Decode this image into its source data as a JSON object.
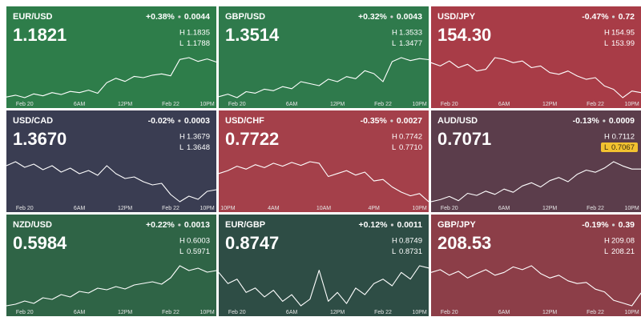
{
  "chart_data": [
    {
      "type": "line",
      "title": "EUR/USD",
      "price": "1.1821",
      "change_pct": "+0.38%",
      "change": "0.0044",
      "high_label": "H",
      "high": "1.1835",
      "low_label": "L",
      "low": "1.1788",
      "color": "#2e7d4a",
      "line_color": "#ffffff",
      "low_highlight": false,
      "x": [
        0,
        1,
        2,
        3,
        4,
        5,
        6,
        7,
        8,
        9,
        10,
        11,
        12,
        13,
        14,
        15,
        16,
        17,
        18,
        19,
        20,
        21,
        22,
        23
      ],
      "values": [
        1.1765,
        1.1768,
        1.1764,
        1.177,
        1.1767,
        1.1772,
        1.1769,
        1.1774,
        1.1772,
        1.1776,
        1.1771,
        1.1788,
        1.1795,
        1.179,
        1.1798,
        1.1796,
        1.18,
        1.1802,
        1.1799,
        1.1825,
        1.1828,
        1.1822,
        1.1826,
        1.1821
      ],
      "xlim": [
        0,
        23
      ],
      "xticks": [
        {
          "value": 2,
          "label": "Feb 20"
        },
        {
          "value": 8,
          "label": "6AM"
        },
        {
          "value": 13,
          "label": "12PM"
        },
        {
          "value": 18,
          "label": "Feb 22"
        },
        {
          "value": 22,
          "label": "10PM"
        }
      ]
    },
    {
      "type": "line",
      "title": "GBP/USD",
      "price": "1.3514",
      "change_pct": "+0.32%",
      "change": "0.0043",
      "high_label": "H",
      "high": "1.3533",
      "low_label": "L",
      "low": "1.3477",
      "color": "#2f7a4c",
      "line_color": "#ffffff",
      "low_highlight": false,
      "x": [
        0,
        1,
        2,
        3,
        4,
        5,
        6,
        7,
        8,
        9,
        10,
        11,
        12,
        13,
        14,
        15,
        16,
        17,
        18,
        19,
        20,
        21,
        22,
        23
      ],
      "values": [
        1.344,
        1.3445,
        1.3438,
        1.345,
        1.3447,
        1.3455,
        1.3452,
        1.346,
        1.3456,
        1.347,
        1.3466,
        1.3462,
        1.3475,
        1.347,
        1.348,
        1.3476,
        1.3492,
        1.3486,
        1.347,
        1.351,
        1.3518,
        1.3512,
        1.3516,
        1.3514
      ],
      "xlim": [
        0,
        23
      ],
      "xticks": [
        {
          "value": 2,
          "label": "Feb 20"
        },
        {
          "value": 8,
          "label": "6AM"
        },
        {
          "value": 13,
          "label": "12PM"
        },
        {
          "value": 18,
          "label": "Feb 22"
        },
        {
          "value": 22,
          "label": "10PM"
        }
      ]
    },
    {
      "type": "line",
      "title": "USD/JPY",
      "price": "154.30",
      "change_pct": "-0.47%",
      "change": "0.72",
      "high_label": "H",
      "high": "154.95",
      "low_label": "L",
      "low": "153.99",
      "color": "#a83c47",
      "line_color": "#ffffff",
      "low_highlight": false,
      "x": [
        0,
        1,
        2,
        3,
        4,
        5,
        6,
        7,
        8,
        9,
        10,
        11,
        12,
        13,
        14,
        15,
        16,
        17,
        18,
        19,
        20,
        21,
        22,
        23
      ],
      "values": [
        155.2,
        155.1,
        155.25,
        155.05,
        155.15,
        154.95,
        155.0,
        155.35,
        155.3,
        155.2,
        155.25,
        155.05,
        155.1,
        154.9,
        154.85,
        154.95,
        154.8,
        154.7,
        154.75,
        154.5,
        154.4,
        154.15,
        154.35,
        154.3
      ],
      "xlim": [
        0,
        23
      ],
      "xticks": [
        {
          "value": 2,
          "label": "Feb 20"
        },
        {
          "value": 8,
          "label": "6AM"
        },
        {
          "value": 13,
          "label": "12PM"
        },
        {
          "value": 18,
          "label": "Feb 22"
        },
        {
          "value": 22,
          "label": "10PM"
        }
      ]
    },
    {
      "type": "line",
      "title": "USD/CAD",
      "price": "1.3670",
      "change_pct": "-0.02%",
      "change": "0.0003",
      "high_label": "H",
      "high": "1.3679",
      "low_label": "L",
      "low": "1.3648",
      "color": "#3a3d52",
      "line_color": "#ffffff",
      "low_highlight": false,
      "x": [
        0,
        1,
        2,
        3,
        4,
        5,
        6,
        7,
        8,
        9,
        10,
        11,
        12,
        13,
        14,
        15,
        16,
        17,
        18,
        19,
        20,
        21,
        22,
        23
      ],
      "values": [
        1.37,
        1.3705,
        1.3698,
        1.3702,
        1.3695,
        1.37,
        1.3692,
        1.3697,
        1.369,
        1.3694,
        1.3688,
        1.37,
        1.369,
        1.3684,
        1.3686,
        1.368,
        1.3676,
        1.3678,
        1.3664,
        1.3655,
        1.3662,
        1.3658,
        1.3668,
        1.367
      ],
      "xlim": [
        0,
        23
      ],
      "xticks": [
        {
          "value": 2,
          "label": "Feb 20"
        },
        {
          "value": 8,
          "label": "6AM"
        },
        {
          "value": 13,
          "label": "12PM"
        },
        {
          "value": 18,
          "label": "Feb 22"
        },
        {
          "value": 22,
          "label": "10PM"
        }
      ]
    },
    {
      "type": "line",
      "title": "USD/CHF",
      "price": "0.7722",
      "change_pct": "-0.35%",
      "change": "0.0027",
      "high_label": "H",
      "high": "0.7742",
      "low_label": "L",
      "low": "0.7710",
      "color": "#a4404a",
      "line_color": "#ffffff",
      "low_highlight": false,
      "x": [
        0,
        1,
        2,
        3,
        4,
        5,
        6,
        7,
        8,
        9,
        10,
        11,
        12,
        13,
        14,
        15,
        16,
        17,
        18,
        19,
        20,
        21,
        22,
        23
      ],
      "values": [
        0.776,
        0.7764,
        0.777,
        0.7766,
        0.7772,
        0.7768,
        0.7774,
        0.777,
        0.7775,
        0.7771,
        0.7776,
        0.7774,
        0.7756,
        0.776,
        0.7764,
        0.7758,
        0.7762,
        0.775,
        0.7752,
        0.7742,
        0.7735,
        0.773,
        0.7733,
        0.7722
      ],
      "xlim": [
        0,
        23
      ],
      "xticks": [
        {
          "value": 1,
          "label": "10PM"
        },
        {
          "value": 6,
          "label": "4AM"
        },
        {
          "value": 11.5,
          "label": "10AM"
        },
        {
          "value": 17,
          "label": "4PM"
        },
        {
          "value": 22,
          "label": "10PM"
        }
      ]
    },
    {
      "type": "line",
      "title": "AUD/USD",
      "price": "0.7071",
      "change_pct": "-0.13%",
      "change": "0.0009",
      "high_label": "H",
      "high": "0.7112",
      "low_label": "L",
      "low": "0.7067",
      "color": "#5b3d4b",
      "line_color": "#ffffff",
      "low_highlight": true,
      "x": [
        0,
        1,
        2,
        3,
        4,
        5,
        6,
        7,
        8,
        9,
        10,
        11,
        12,
        13,
        14,
        15,
        16,
        17,
        18,
        19,
        20,
        21,
        22,
        23
      ],
      "values": [
        0.704,
        0.7042,
        0.7045,
        0.7041,
        0.7048,
        0.7046,
        0.705,
        0.7047,
        0.7052,
        0.7049,
        0.7055,
        0.7058,
        0.7054,
        0.706,
        0.7063,
        0.7059,
        0.7066,
        0.707,
        0.7068,
        0.7072,
        0.7078,
        0.7074,
        0.7071,
        0.7071
      ],
      "xlim": [
        0,
        23
      ],
      "xticks": [
        {
          "value": 2,
          "label": "Feb 20"
        },
        {
          "value": 8,
          "label": "6AM"
        },
        {
          "value": 13,
          "label": "12PM"
        },
        {
          "value": 18,
          "label": "Feb 22"
        },
        {
          "value": 22,
          "label": "10PM"
        }
      ]
    },
    {
      "type": "line",
      "title": "NZD/USD",
      "price": "0.5984",
      "change_pct": "+0.22%",
      "change": "0.0013",
      "high_label": "H",
      "high": "0.6003",
      "low_label": "L",
      "low": "0.5971",
      "color": "#2f6446",
      "line_color": "#ffffff",
      "low_highlight": false,
      "x": [
        0,
        1,
        2,
        3,
        4,
        5,
        6,
        7,
        8,
        9,
        10,
        11,
        12,
        13,
        14,
        15,
        16,
        17,
        18,
        19,
        20,
        21,
        22,
        23
      ],
      "values": [
        0.594,
        0.5942,
        0.5946,
        0.5943,
        0.595,
        0.5948,
        0.5954,
        0.5951,
        0.5958,
        0.5956,
        0.5962,
        0.596,
        0.5964,
        0.5961,
        0.5966,
        0.5968,
        0.597,
        0.5967,
        0.5975,
        0.599,
        0.5984,
        0.5987,
        0.5982,
        0.5984
      ],
      "xlim": [
        0,
        23
      ],
      "xticks": [
        {
          "value": 2,
          "label": "Feb 20"
        },
        {
          "value": 8,
          "label": "6AM"
        },
        {
          "value": 13,
          "label": "12PM"
        },
        {
          "value": 18,
          "label": "Feb 22"
        },
        {
          "value": 22,
          "label": "10PM"
        }
      ]
    },
    {
      "type": "line",
      "title": "EUR/GBP",
      "price": "0.8747",
      "change_pct": "+0.12%",
      "change": "0.0011",
      "high_label": "H",
      "high": "0.8749",
      "low_label": "L",
      "low": "0.8731",
      "color": "#2e4d45",
      "line_color": "#ffffff",
      "low_highlight": false,
      "x": [
        0,
        1,
        2,
        3,
        4,
        5,
        6,
        7,
        8,
        9,
        10,
        11,
        12,
        13,
        14,
        15,
        16,
        17,
        18,
        19,
        20,
        21,
        22,
        23
      ],
      "values": [
        0.8745,
        0.874,
        0.8742,
        0.8736,
        0.8738,
        0.8734,
        0.8737,
        0.8732,
        0.8735,
        0.873,
        0.8733,
        0.8746,
        0.8732,
        0.8736,
        0.8731,
        0.8738,
        0.8735,
        0.874,
        0.8742,
        0.8739,
        0.8745,
        0.8742,
        0.8748,
        0.8747
      ],
      "xlim": [
        0,
        23
      ],
      "xticks": [
        {
          "value": 2,
          "label": "Feb 20"
        },
        {
          "value": 8,
          "label": "6AM"
        },
        {
          "value": 13,
          "label": "12PM"
        },
        {
          "value": 18,
          "label": "Feb 22"
        },
        {
          "value": 22,
          "label": "10PM"
        }
      ]
    },
    {
      "type": "line",
      "title": "GBP/JPY",
      "price": "208.53",
      "change_pct": "-0.19%",
      "change": "0.39",
      "high_label": "H",
      "high": "209.08",
      "low_label": "L",
      "low": "208.21",
      "color": "#8c3e48",
      "line_color": "#ffffff",
      "low_highlight": false,
      "x": [
        0,
        1,
        2,
        3,
        4,
        5,
        6,
        7,
        8,
        9,
        10,
        11,
        12,
        13,
        14,
        15,
        16,
        17,
        18,
        19,
        20,
        21,
        22,
        23
      ],
      "values": [
        208.9,
        208.95,
        208.85,
        208.92,
        208.8,
        208.88,
        208.95,
        208.85,
        208.9,
        209.0,
        208.95,
        209.02,
        208.88,
        208.8,
        208.85,
        208.75,
        208.7,
        208.72,
        208.6,
        208.55,
        208.4,
        208.35,
        208.3,
        208.53
      ],
      "xlim": [
        0,
        23
      ],
      "xticks": [
        {
          "value": 2,
          "label": "Feb 20"
        },
        {
          "value": 8,
          "label": "6AM"
        },
        {
          "value": 13,
          "label": "12PM"
        },
        {
          "value": 18,
          "label": "Feb 22"
        },
        {
          "value": 22,
          "label": "10PM"
        }
      ]
    }
  ]
}
